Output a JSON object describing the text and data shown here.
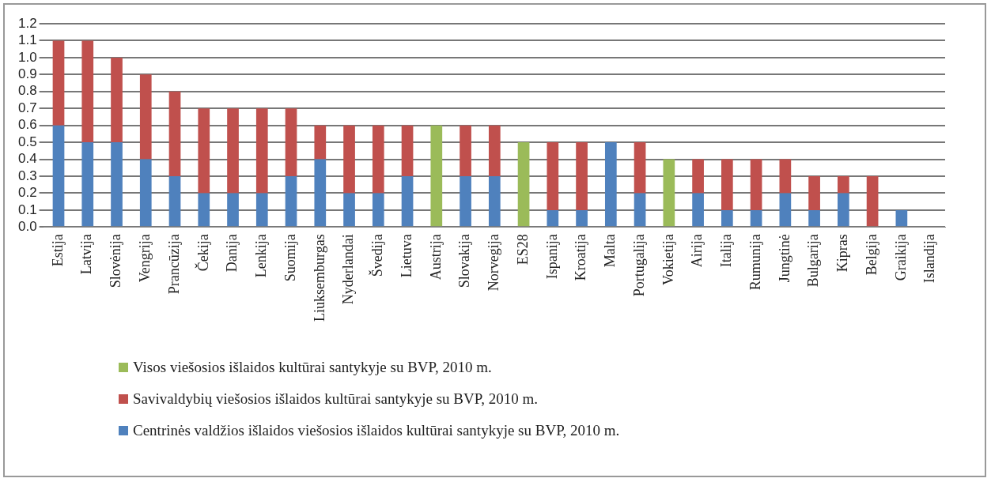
{
  "chart_data": {
    "type": "bar",
    "stacked": true,
    "categories": [
      "Estija",
      "Latvija",
      "Slovėnija",
      "Vengrija",
      "Prancūzija",
      "Čekija",
      "Danija",
      "Lenkija",
      "Suomija",
      "Liuksemburgas",
      "Nyderlandai",
      "Švedija",
      "Lietuva",
      "Austrija",
      "Slovakija",
      "Norvegija",
      "ES28",
      "Ispanija",
      "Kroatija",
      "Malta",
      "Portugalija",
      "Vokietija",
      "Airija",
      "Italija",
      "Rumunija",
      "Jungtinė",
      "Bulgarija",
      "Kipras",
      "Belgija",
      "Graikija",
      "Islandija"
    ],
    "series": [
      {
        "name": "Centrinės valdžios išlaidos viešosios išlaidos kultūrai santykyje su BVP, 2010 m.",
        "color": "#4f81bd",
        "values": [
          0.6,
          0.5,
          0.5,
          0.4,
          0.3,
          0.2,
          0.2,
          0.2,
          0.3,
          0.4,
          0.2,
          0.2,
          0.3,
          null,
          0.3,
          0.3,
          null,
          0.1,
          0.1,
          0.5,
          0.2,
          null,
          0.2,
          0.1,
          0.1,
          0.2,
          0.1,
          0.2,
          null,
          0.1,
          null
        ]
      },
      {
        "name": "Savivaldybių viešosios išlaidos kultūrai santykyje su BVP, 2010 m.",
        "color": "#c0504d",
        "values": [
          0.5,
          0.6,
          0.5,
          0.5,
          0.5,
          0.5,
          0.5,
          0.5,
          0.4,
          0.2,
          0.4,
          0.4,
          0.3,
          null,
          0.3,
          0.3,
          null,
          0.4,
          0.4,
          null,
          0.3,
          null,
          0.2,
          0.3,
          0.3,
          0.2,
          0.2,
          0.1,
          0.3,
          null,
          null
        ]
      },
      {
        "name": "Visos viešosios išlaidos kultūrai santykyje su BVP, 2010 m.",
        "color": "#9bbb59",
        "values": [
          null,
          null,
          null,
          null,
          null,
          null,
          null,
          null,
          null,
          null,
          null,
          null,
          null,
          0.6,
          null,
          null,
          0.5,
          null,
          null,
          null,
          null,
          0.4,
          null,
          null,
          null,
          null,
          null,
          null,
          null,
          null,
          null
        ]
      }
    ],
    "ylim": [
      0,
      1.2
    ],
    "yticks": [
      {
        "value": 0,
        "label": "0.0"
      },
      0.1,
      0.2,
      0.3,
      0.4,
      0.5,
      0.6,
      0.7,
      0.8,
      0.9,
      {
        "value": 1,
        "label": "1.0"
      },
      1.1,
      1.2
    ],
    "grid": "y",
    "legend": "bottom"
  }
}
